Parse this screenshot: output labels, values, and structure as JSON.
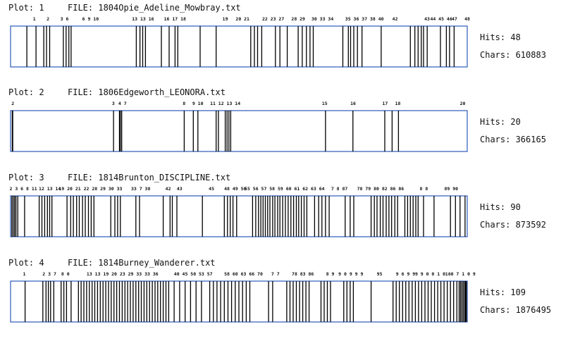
{
  "colors": {
    "frame": "#4a72c4",
    "mark": "#000000",
    "text": "#111111"
  },
  "chart_data": [
    {
      "type": "strip",
      "plot_label": "Plot: 1",
      "file_label": "FILE: 1804Opie_Adeline_Mowbray.txt",
      "hits_label": "Hits: 48",
      "chars_label": "Chars: 610883",
      "hits": 48,
      "chars": 610883,
      "positions": [
        0.035,
        0.055,
        0.072,
        0.078,
        0.085,
        0.115,
        0.121,
        0.127,
        0.132,
        0.275,
        0.283,
        0.289,
        0.295,
        0.33,
        0.347,
        0.36,
        0.366,
        0.415,
        0.45,
        0.526,
        0.534,
        0.541,
        0.55,
        0.58,
        0.59,
        0.606,
        0.63,
        0.639,
        0.648,
        0.656,
        0.663,
        0.728,
        0.74,
        0.745,
        0.752,
        0.76,
        0.77,
        0.812,
        0.876,
        0.886,
        0.893,
        0.9,
        0.905,
        0.913,
        0.942,
        0.955,
        0.962,
        0.972
      ],
      "tick_labels": [
        {
          "text": "1",
          "at": 0.052
        },
        {
          "text": "2",
          "at": 0.082
        },
        {
          "text": "3 6",
          "at": 0.118
        },
        {
          "text": "6 9 10",
          "at": 0.175
        },
        {
          "text": "13 13 16",
          "at": 0.29
        },
        {
          "text": "16 17 18",
          "at": 0.36
        },
        {
          "text": "19",
          "at": 0.47
        },
        {
          "text": "20 21",
          "at": 0.508
        },
        {
          "text": "22 23 27",
          "at": 0.575
        },
        {
          "text": "28 29",
          "at": 0.63
        },
        {
          "text": "30 33 34",
          "at": 0.683
        },
        {
          "text": "35 36 37 38 40",
          "at": 0.775
        },
        {
          "text": "42",
          "at": 0.842
        },
        {
          "text": "43",
          "at": 0.912
        },
        {
          "text": "44 45 46",
          "at": 0.943
        },
        {
          "text": "47",
          "at": 0.972
        },
        {
          "text": "48",
          "at": 1.0
        }
      ]
    },
    {
      "type": "strip",
      "plot_label": "Plot: 2",
      "file_label": "FILE: 1806Edgeworth_LEONORA.txt",
      "hits_label": "Hits: 20",
      "chars_label": "Chars: 366165",
      "hits": 20,
      "chars": 366165,
      "positions": [
        0.003,
        0.004,
        0.225,
        0.238,
        0.24,
        0.243,
        0.38,
        0.4,
        0.41,
        0.45,
        0.455,
        0.47,
        0.474,
        0.478,
        0.482,
        0.69,
        0.75,
        0.82,
        0.836,
        0.85
      ],
      "tick_labels": [
        {
          "text": "2",
          "at": 0.005
        },
        {
          "text": "3",
          "at": 0.225
        },
        {
          "text": "4 7",
          "at": 0.245
        },
        {
          "text": "8",
          "at": 0.38
        },
        {
          "text": "9 10",
          "at": 0.41
        },
        {
          "text": "11 12 13 14",
          "at": 0.47
        },
        {
          "text": "15",
          "at": 0.688
        },
        {
          "text": "16",
          "at": 0.75
        },
        {
          "text": "17",
          "at": 0.82
        },
        {
          "text": "18",
          "at": 0.848
        },
        {
          "text": "20",
          "at": 0.99
        }
      ]
    },
    {
      "type": "strip",
      "plot_label": "Plot: 3",
      "file_label": "FILE: 1814Brunton_DISCIPLINE.txt",
      "hits_label": "Hits: 90",
      "chars_label": "Chars: 873592",
      "hits": 90,
      "chars": 873592,
      "positions": [
        0.002,
        0.005,
        0.008,
        0.011,
        0.015,
        0.03,
        0.062,
        0.068,
        0.074,
        0.08,
        0.085,
        0.09,
        0.123,
        0.131,
        0.137,
        0.144,
        0.15,
        0.157,
        0.163,
        0.17,
        0.176,
        0.182,
        0.219,
        0.228,
        0.234,
        0.24,
        0.274,
        0.282,
        0.334,
        0.349,
        0.354,
        0.364,
        0.42,
        0.468,
        0.475,
        0.481,
        0.487,
        0.495,
        0.53,
        0.537,
        0.543,
        0.548,
        0.553,
        0.558,
        0.563,
        0.568,
        0.574,
        0.579,
        0.585,
        0.59,
        0.596,
        0.602,
        0.608,
        0.614,
        0.62,
        0.626,
        0.631,
        0.637,
        0.643,
        0.649,
        0.666,
        0.675,
        0.682,
        0.69,
        0.698,
        0.733,
        0.744,
        0.752,
        0.79,
        0.797,
        0.803,
        0.81,
        0.816,
        0.823,
        0.829,
        0.835,
        0.842,
        0.848,
        0.864,
        0.87,
        0.876,
        0.882,
        0.888,
        0.893,
        0.905,
        0.928,
        0.964,
        0.975,
        0.985,
        0.996
      ],
      "tick_labels": [
        {
          "text": "2 3 6 8 11",
          "at": 0.028
        },
        {
          "text": "12 13 14",
          "at": 0.086
        },
        {
          "text": "19 20 21 22 28 29 30 33",
          "at": 0.175
        },
        {
          "text": "33 7 38",
          "at": 0.285
        },
        {
          "text": "42",
          "at": 0.345
        },
        {
          "text": "43",
          "at": 0.37
        },
        {
          "text": "45",
          "at": 0.44
        },
        {
          "text": "48 49 50",
          "at": 0.492
        },
        {
          "text": "55 56 57 58 59 60 61 62 63 64",
          "at": 0.6
        },
        {
          "text": "7 8 87",
          "at": 0.72
        },
        {
          "text": "78 79 80 82 86 86",
          "at": 0.81
        },
        {
          "text": "8 8",
          "at": 0.905
        },
        {
          "text": "89 90",
          "at": 0.965
        }
      ]
    },
    {
      "type": "strip",
      "plot_label": "Plot: 4",
      "file_label": "FILE: 1814Burney_Wanderer.txt",
      "hits_label": "Hits: 109",
      "chars_label": "Chars: 1876495",
      "hits": 109,
      "chars": 1876495,
      "positions": [
        0.031,
        0.07,
        0.077,
        0.082,
        0.087,
        0.094,
        0.11,
        0.116,
        0.122,
        0.132,
        0.148,
        0.154,
        0.16,
        0.166,
        0.172,
        0.178,
        0.184,
        0.19,
        0.196,
        0.202,
        0.208,
        0.214,
        0.22,
        0.226,
        0.232,
        0.238,
        0.244,
        0.25,
        0.256,
        0.262,
        0.268,
        0.274,
        0.28,
        0.286,
        0.292,
        0.298,
        0.304,
        0.31,
        0.316,
        0.322,
        0.328,
        0.334,
        0.34,
        0.346,
        0.358,
        0.37,
        0.382,
        0.394,
        0.406,
        0.418,
        0.436,
        0.444,
        0.452,
        0.46,
        0.468,
        0.476,
        0.484,
        0.492,
        0.5,
        0.508,
        0.516,
        0.524,
        0.565,
        0.574,
        0.605,
        0.612,
        0.619,
        0.626,
        0.633,
        0.64,
        0.647,
        0.654,
        0.68,
        0.687,
        0.694,
        0.701,
        0.73,
        0.737,
        0.744,
        0.751,
        0.79,
        0.838,
        0.845,
        0.852,
        0.859,
        0.866,
        0.873,
        0.88,
        0.887,
        0.894,
        0.901,
        0.908,
        0.915,
        0.922,
        0.929,
        0.936,
        0.943,
        0.95,
        0.957,
        0.964,
        0.971,
        0.978,
        0.983,
        0.986,
        0.989,
        0.992,
        0.995,
        0.997,
        0.999
      ],
      "tick_labels": [
        {
          "text": "1",
          "at": 0.03
        },
        {
          "text": "2 3 7",
          "at": 0.085
        },
        {
          "text": "8 0",
          "at": 0.12
        },
        {
          "text": "13 13 19 20 23 29 33 33 36",
          "at": 0.245
        },
        {
          "text": "40 45 50 53 57",
          "at": 0.4
        },
        {
          "text": "58 60 63 66 70",
          "at": 0.51
        },
        {
          "text": "7 7",
          "at": 0.58
        },
        {
          "text": "78 83 86",
          "at": 0.64
        },
        {
          "text": "8 9",
          "at": 0.7
        },
        {
          "text": "9 0 9 9 9",
          "at": 0.745
        },
        {
          "text": "95",
          "at": 0.808
        },
        {
          "text": "9 6 9 9",
          "at": 0.865
        },
        {
          "text": "9 9 0 0 1 0 6",
          "at": 0.925
        },
        {
          "text": "1 0 7 1 0 9",
          "at": 0.985
        }
      ]
    }
  ]
}
